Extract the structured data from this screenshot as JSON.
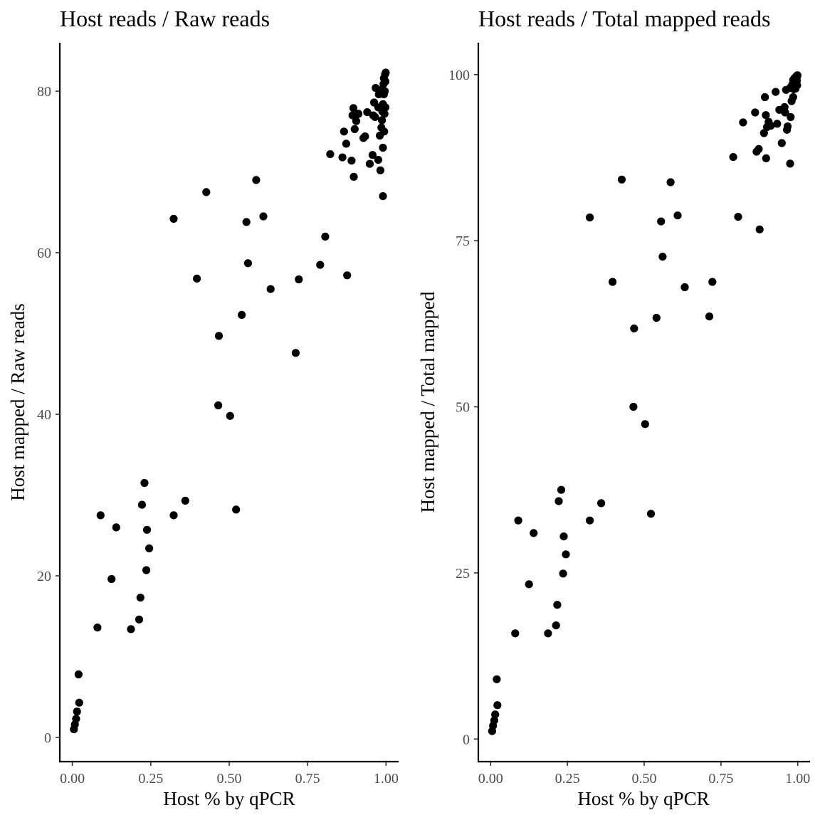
{
  "chart_data": [
    {
      "type": "scatter",
      "title": "Host reads / Raw reads",
      "xlabel": "Host % by qPCR",
      "ylabel": "Host mapped / Raw reads",
      "xlim": [
        -0.04,
        1.04
      ],
      "ylim": [
        -3.0,
        86.0
      ],
      "x_ticks": [
        0.0,
        0.25,
        0.5,
        0.75,
        1.0
      ],
      "x_tick_labels": [
        "0.00",
        "0.25",
        "0.50",
        "0.75",
        "1.00"
      ],
      "y_ticks": [
        0,
        20,
        40,
        60,
        80
      ],
      "y_tick_labels": [
        "0",
        "20",
        "40",
        "60",
        "80"
      ],
      "grid": false,
      "legend": "none",
      "point_color": "#000000",
      "points": [
        [
          0.005,
          1.0
        ],
        [
          0.008,
          1.6
        ],
        [
          0.012,
          2.3
        ],
        [
          0.015,
          3.2
        ],
        [
          0.022,
          4.3
        ],
        [
          0.02,
          7.8
        ],
        [
          0.08,
          13.6
        ],
        [
          0.09,
          27.5
        ],
        [
          0.125,
          19.6
        ],
        [
          0.14,
          26.0
        ],
        [
          0.187,
          13.4
        ],
        [
          0.213,
          14.6
        ],
        [
          0.217,
          17.3
        ],
        [
          0.222,
          28.8
        ],
        [
          0.23,
          31.5
        ],
        [
          0.236,
          20.7
        ],
        [
          0.238,
          25.7
        ],
        [
          0.245,
          23.4
        ],
        [
          0.323,
          27.5
        ],
        [
          0.36,
          29.3
        ],
        [
          0.323,
          64.2
        ],
        [
          0.397,
          56.8
        ],
        [
          0.427,
          67.5
        ],
        [
          0.465,
          41.1
        ],
        [
          0.467,
          49.7
        ],
        [
          0.503,
          39.8
        ],
        [
          0.522,
          28.2
        ],
        [
          0.54,
          52.3
        ],
        [
          0.555,
          63.8
        ],
        [
          0.56,
          58.7
        ],
        [
          0.586,
          69.0
        ],
        [
          0.609,
          64.5
        ],
        [
          0.632,
          55.5
        ],
        [
          0.712,
          47.6
        ],
        [
          0.722,
          56.7
        ],
        [
          0.79,
          58.5
        ],
        [
          0.806,
          62.0
        ],
        [
          0.876,
          57.2
        ],
        [
          0.822,
          72.2
        ],
        [
          0.861,
          71.8
        ],
        [
          0.866,
          75.0
        ],
        [
          0.873,
          73.5
        ],
        [
          0.89,
          71.4
        ],
        [
          0.893,
          77.0
        ],
        [
          0.897,
          69.4
        ],
        [
          0.896,
          77.9
        ],
        [
          0.9,
          75.3
        ],
        [
          0.905,
          76.3
        ],
        [
          0.912,
          77.2
        ],
        [
          0.928,
          74.2
        ],
        [
          0.933,
          74.4
        ],
        [
          0.94,
          77.4
        ],
        [
          0.948,
          71.0
        ],
        [
          0.957,
          72.1
        ],
        [
          0.959,
          77.0
        ],
        [
          0.962,
          78.6
        ],
        [
          0.965,
          76.8
        ],
        [
          0.967,
          80.4
        ],
        [
          0.975,
          78.0
        ],
        [
          0.975,
          71.5
        ],
        [
          0.977,
          79.6
        ],
        [
          0.98,
          74.5
        ],
        [
          0.982,
          70.2
        ],
        [
          0.985,
          75.5
        ],
        [
          0.985,
          80.2
        ],
        [
          0.987,
          76.4
        ],
        [
          0.988,
          77.5
        ],
        [
          0.99,
          67.0
        ],
        [
          0.99,
          73.0
        ],
        [
          0.99,
          78.4
        ],
        [
          0.992,
          80.9
        ],
        [
          0.993,
          79.6
        ],
        [
          0.993,
          81.6
        ],
        [
          0.994,
          75.0
        ],
        [
          0.995,
          77.2
        ],
        [
          0.996,
          80.0
        ],
        [
          0.997,
          82.1
        ],
        [
          0.998,
          78.0
        ],
        [
          0.998,
          81.2
        ],
        [
          0.999,
          82.3
        ]
      ]
    },
    {
      "type": "scatter",
      "title": "Host reads / Total mapped reads",
      "xlabel": "Host % by qPCR",
      "ylabel": "Host mapped / Total mapped",
      "xlim": [
        -0.04,
        1.04
      ],
      "ylim": [
        -3.4,
        104.8
      ],
      "x_ticks": [
        0.0,
        0.25,
        0.5,
        0.75,
        1.0
      ],
      "x_tick_labels": [
        "0.00",
        "0.25",
        "0.50",
        "0.75",
        "1.00"
      ],
      "y_ticks": [
        0,
        25,
        50,
        75,
        100
      ],
      "y_tick_labels": [
        "0",
        "25",
        "50",
        "75",
        "100"
      ],
      "grid": false,
      "legend": "none",
      "point_color": "#000000",
      "points": [
        [
          0.005,
          1.2
        ],
        [
          0.008,
          2.0
        ],
        [
          0.012,
          2.8
        ],
        [
          0.015,
          3.7
        ],
        [
          0.022,
          5.1
        ],
        [
          0.02,
          9.0
        ],
        [
          0.08,
          15.9
        ],
        [
          0.09,
          32.9
        ],
        [
          0.125,
          23.3
        ],
        [
          0.14,
          31.0
        ],
        [
          0.187,
          15.9
        ],
        [
          0.213,
          17.1
        ],
        [
          0.217,
          20.2
        ],
        [
          0.222,
          35.8
        ],
        [
          0.23,
          37.5
        ],
        [
          0.236,
          24.9
        ],
        [
          0.238,
          30.5
        ],
        [
          0.245,
          27.8
        ],
        [
          0.323,
          32.9
        ],
        [
          0.36,
          35.5
        ],
        [
          0.323,
          78.5
        ],
        [
          0.397,
          68.8
        ],
        [
          0.427,
          84.2
        ],
        [
          0.465,
          50.0
        ],
        [
          0.467,
          61.8
        ],
        [
          0.503,
          47.4
        ],
        [
          0.522,
          33.9
        ],
        [
          0.54,
          63.4
        ],
        [
          0.555,
          77.9
        ],
        [
          0.56,
          72.6
        ],
        [
          0.586,
          83.8
        ],
        [
          0.609,
          78.8
        ],
        [
          0.632,
          68.0
        ],
        [
          0.712,
          63.6
        ],
        [
          0.722,
          68.8
        ],
        [
          0.79,
          87.6
        ],
        [
          0.806,
          78.6
        ],
        [
          0.876,
          76.7
        ],
        [
          0.822,
          92.8
        ],
        [
          0.861,
          94.3
        ],
        [
          0.866,
          88.4
        ],
        [
          0.873,
          88.8
        ],
        [
          0.89,
          91.2
        ],
        [
          0.893,
          96.6
        ],
        [
          0.897,
          87.4
        ],
        [
          0.896,
          93.9
        ],
        [
          0.9,
          92.1
        ],
        [
          0.905,
          92.9
        ],
        [
          0.912,
          92.3
        ],
        [
          0.928,
          97.4
        ],
        [
          0.933,
          92.6
        ],
        [
          0.94,
          94.7
        ],
        [
          0.948,
          89.7
        ],
        [
          0.957,
          95.1
        ],
        [
          0.959,
          94.3
        ],
        [
          0.962,
          97.7
        ],
        [
          0.965,
          91.7
        ],
        [
          0.967,
          92.2
        ],
        [
          0.975,
          98.0
        ],
        [
          0.975,
          86.6
        ],
        [
          0.977,
          93.6
        ],
        [
          0.98,
          96.0
        ],
        [
          0.982,
          98.5
        ],
        [
          0.985,
          96.6
        ],
        [
          0.985,
          99.2
        ],
        [
          0.987,
          97.8
        ],
        [
          0.988,
          98.0
        ],
        [
          0.99,
          99.5
        ],
        [
          0.99,
          98.7
        ],
        [
          0.99,
          99.0
        ],
        [
          0.992,
          98.2
        ],
        [
          0.993,
          97.9
        ],
        [
          0.993,
          99.6
        ],
        [
          0.994,
          98.8
        ],
        [
          0.995,
          99.3
        ],
        [
          0.996,
          99.8
        ],
        [
          0.997,
          99.1
        ],
        [
          0.998,
          98.4
        ],
        [
          0.998,
          99.7
        ],
        [
          0.999,
          99.9
        ]
      ]
    }
  ]
}
